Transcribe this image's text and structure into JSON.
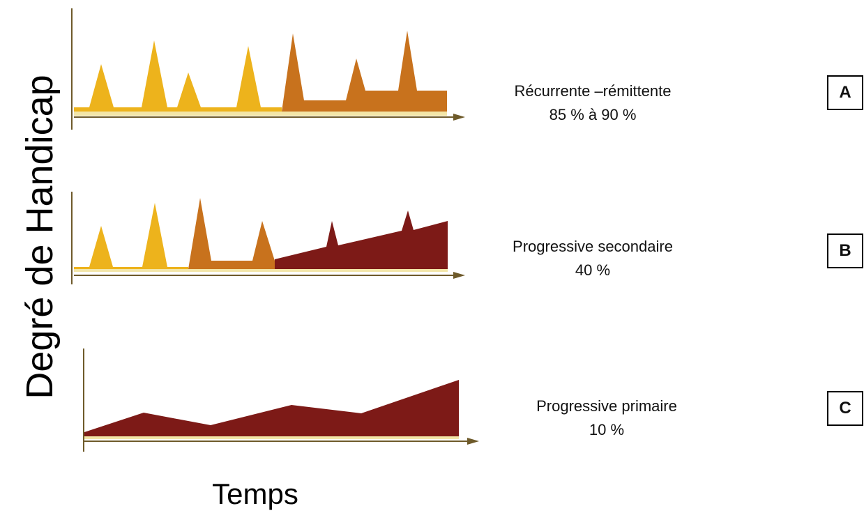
{
  "axis_labels": {
    "y": "Degré de Handicap",
    "x": "Temps"
  },
  "panels": [
    {
      "id": "A",
      "title": "Récurrente –rémittente",
      "value": "85 % à 90 %"
    },
    {
      "id": "B",
      "title": "Progressive secondaire",
      "value": "40 %"
    },
    {
      "id": "C",
      "title": "Progressive primaire",
      "value": "10 %"
    }
  ],
  "colors": {
    "relapse_yellow": "#EDB31C",
    "progression_orange": "#C8721D",
    "progression_dark": "#7D1A17",
    "axis": "#6E5A2A",
    "baseline_cream": "#F3E6A8"
  }
}
